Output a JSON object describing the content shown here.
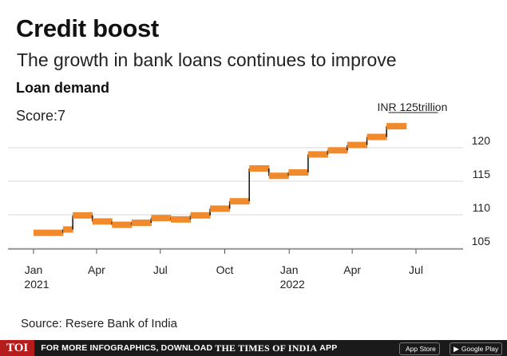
{
  "title": "Credit boost",
  "subtitle": "The growth in bank loans continues to improve",
  "section": "Loan demand",
  "score": "Score:7",
  "source": "Source: Resere Bank of India",
  "footer": {
    "logo": "TOI",
    "text": "FOR MORE INFOGRAPHICS, DOWNLOAD",
    "brand": "THE TIMES OF INDIA",
    "app": "APP",
    "apple_store": "App Store",
    "google_play": "Google Play",
    "apple_icon": "apple-icon",
    "play_icon": "play-icon"
  },
  "chart_data": {
    "type": "line",
    "style": "step",
    "ylim": [
      105,
      125
    ],
    "yticks": [
      105,
      110,
      115,
      120
    ],
    "xticks": [
      {
        "label": "Jan",
        "sub": "2021"
      },
      {
        "label": "Apr",
        "sub": ""
      },
      {
        "label": "Jul",
        "sub": ""
      },
      {
        "label": "Oct",
        "sub": ""
      },
      {
        "label": "Jan",
        "sub": "2022"
      },
      {
        "label": "Apr",
        "sub": ""
      },
      {
        "label": "Jul",
        "sub": ""
      }
    ],
    "annotation": "INR 125trillion",
    "grid": true,
    "color": "#f08a2c",
    "points": [
      {
        "period": "2021-01-01",
        "value": 107.3
      },
      {
        "period": "2021-01-15",
        "value": 107.3
      },
      {
        "period": "2021-01-29",
        "value": 107.3
      },
      {
        "period": "2021-02-12",
        "value": 107.8
      },
      {
        "period": "2021-02-26",
        "value": 109.9
      },
      {
        "period": "2021-03-12",
        "value": 109.9
      },
      {
        "period": "2021-03-26",
        "value": 109.0
      },
      {
        "period": "2021-04-09",
        "value": 109.0
      },
      {
        "period": "2021-04-23",
        "value": 108.5
      },
      {
        "period": "2021-05-07",
        "value": 108.5
      },
      {
        "period": "2021-05-21",
        "value": 108.8
      },
      {
        "period": "2021-06-04",
        "value": 108.8
      },
      {
        "period": "2021-06-18",
        "value": 109.5
      },
      {
        "period": "2021-07-02",
        "value": 109.5
      },
      {
        "period": "2021-07-16",
        "value": 109.3
      },
      {
        "period": "2021-07-30",
        "value": 109.3
      },
      {
        "period": "2021-08-13",
        "value": 109.9
      },
      {
        "period": "2021-08-27",
        "value": 109.9
      },
      {
        "period": "2021-09-10",
        "value": 110.9
      },
      {
        "period": "2021-09-24",
        "value": 110.9
      },
      {
        "period": "2021-10-08",
        "value": 112.0
      },
      {
        "period": "2021-10-22",
        "value": 112.0
      },
      {
        "period": "2021-11-05",
        "value": 116.9
      },
      {
        "period": "2021-11-19",
        "value": 116.9
      },
      {
        "period": "2021-12-03",
        "value": 115.8
      },
      {
        "period": "2021-12-17",
        "value": 115.8
      },
      {
        "period": "2021-12-31",
        "value": 116.3
      },
      {
        "period": "2022-01-14",
        "value": 116.3
      },
      {
        "period": "2022-01-28",
        "value": 119.0
      },
      {
        "period": "2022-02-11",
        "value": 119.0
      },
      {
        "period": "2022-02-25",
        "value": 119.6
      },
      {
        "period": "2022-03-11",
        "value": 119.6
      },
      {
        "period": "2022-03-25",
        "value": 120.4
      },
      {
        "period": "2022-04-08",
        "value": 120.4
      },
      {
        "period": "2022-04-22",
        "value": 121.6
      },
      {
        "period": "2022-05-06",
        "value": 121.6
      },
      {
        "period": "2022-05-20",
        "value": 123.2
      },
      {
        "period": "2022-06-03",
        "value": 123.2
      }
    ]
  }
}
